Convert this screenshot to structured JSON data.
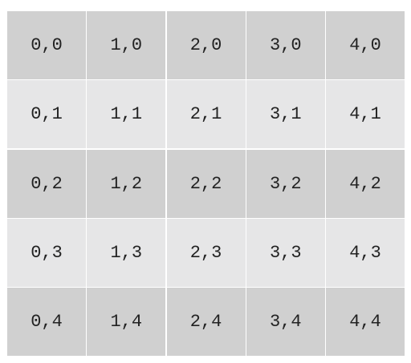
{
  "colors": {
    "row_dark": "#d0d0d0",
    "row_light": "#e6e6e7",
    "text": "#222222",
    "background": "#ffffff"
  },
  "grid": {
    "rows": [
      {
        "shade": "dark",
        "cells": [
          "0,0",
          "1,0",
          "2,0",
          "3,0",
          "4,0"
        ]
      },
      {
        "shade": "light",
        "cells": [
          "0,1",
          "1,1",
          "2,1",
          "3,1",
          "4,1"
        ]
      },
      {
        "shade": "dark",
        "cells": [
          "0,2",
          "1,2",
          "2,2",
          "3,2",
          "4,2"
        ]
      },
      {
        "shade": "light",
        "cells": [
          "0,3",
          "1,3",
          "2,3",
          "3,3",
          "4,3"
        ]
      },
      {
        "shade": "dark",
        "cells": [
          "0,4",
          "1,4",
          "2,4",
          "3,4",
          "4,4"
        ]
      }
    ]
  }
}
